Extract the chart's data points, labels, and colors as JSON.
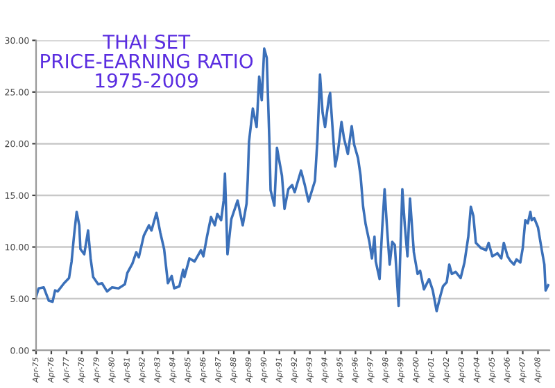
{
  "chart_data": {
    "type": "line",
    "title": "THAI SET\nPRICE-EARNING RATIO\n1975-2009",
    "x": [
      "1975-04",
      "1975-06",
      "1975-10",
      "1976-02",
      "1976-05",
      "1976-07",
      "1976-09",
      "1977-02",
      "1977-06",
      "1977-08",
      "1977-10",
      "1977-12",
      "1978-02",
      "1978-03",
      "1978-06",
      "1978-09",
      "1978-11",
      "1979-01",
      "1979-05",
      "1979-08",
      "1979-12",
      "1980-04",
      "1980-09",
      "1981-02",
      "1981-04",
      "1981-08",
      "1981-11",
      "1982-01",
      "1982-05",
      "1982-09",
      "1982-11",
      "1983-03",
      "1983-06",
      "1983-09",
      "1983-12",
      "1984-03",
      "1984-05",
      "1984-09",
      "1984-12",
      "1985-01",
      "1985-05",
      "1985-09",
      "1986-02",
      "1986-04",
      "1986-07",
      "1986-10",
      "1987-01",
      "1987-03",
      "1987-06",
      "1987-08",
      "1987-09",
      "1987-11",
      "1988-02",
      "1988-07",
      "1988-11",
      "1989-02",
      "1989-03",
      "1989-04",
      "1989-07",
      "1989-10",
      "1989-12",
      "1990-02",
      "1990-04",
      "1990-06",
      "1990-08",
      "1990-09",
      "1990-12",
      "1991-02",
      "1991-06",
      "1991-08",
      "1991-11",
      "1992-02",
      "1992-04",
      "1992-09",
      "1992-12",
      "1993-03",
      "1993-08",
      "1993-10",
      "1993-12",
      "1994-02",
      "1994-04",
      "1994-07",
      "1994-08",
      "1994-12",
      "1995-02",
      "1995-05",
      "1995-07",
      "1995-10",
      "1996-01",
      "1996-03",
      "1996-06",
      "1996-08",
      "1996-10",
      "1996-12",
      "1997-03",
      "1997-05",
      "1997-07",
      "1997-08",
      "1997-11",
      "1998-01",
      "1998-03",
      "1998-05",
      "1998-07",
      "1998-09",
      "1998-11",
      "1999-02",
      "1999-05",
      "1999-07",
      "1999-09",
      "1999-11",
      "2000-02",
      "2000-05",
      "2000-07",
      "2000-10",
      "2001-02",
      "2001-05",
      "2001-08",
      "2001-11",
      "2002-01",
      "2002-04",
      "2002-06",
      "2002-08",
      "2002-11",
      "2003-03",
      "2003-06",
      "2003-09",
      "2003-11",
      "2004-01",
      "2004-03",
      "2004-07",
      "2004-11",
      "2005-01",
      "2005-04",
      "2005-08",
      "2005-11",
      "2006-01",
      "2006-04",
      "2006-06",
      "2006-09",
      "2006-11",
      "2007-02",
      "2007-04",
      "2007-06",
      "2007-08",
      "2007-10",
      "2007-11",
      "2008-01",
      "2008-04",
      "2008-07",
      "2008-09",
      "2008-10",
      "2008-12"
    ],
    "series": [
      {
        "color": "#3b70b9",
        "values": [
          5.2,
          6.0,
          6.1,
          4.8,
          4.7,
          5.8,
          5.7,
          6.5,
          7.0,
          8.6,
          11.2,
          13.4,
          12.1,
          9.8,
          9.3,
          11.6,
          8.9,
          7.1,
          6.4,
          6.5,
          5.7,
          6.1,
          6.0,
          6.4,
          7.5,
          8.4,
          9.5,
          9.0,
          11.1,
          12.1,
          11.6,
          13.3,
          11.4,
          9.8,
          6.5,
          7.2,
          6.0,
          6.2,
          7.8,
          7.1,
          8.9,
          8.6,
          9.7,
          9.1,
          11.1,
          12.9,
          12.1,
          13.2,
          12.6,
          14.5,
          17.1,
          9.3,
          12.7,
          14.5,
          12.1,
          14.2,
          16.5,
          20.2,
          23.4,
          21.6,
          26.5,
          24.2,
          29.2,
          28.3,
          20.5,
          15.5,
          14.0,
          19.6,
          16.9,
          13.7,
          15.6,
          16.0,
          15.3,
          17.4,
          16.0,
          14.4,
          16.4,
          20.5,
          26.7,
          23.0,
          21.6,
          24.4,
          24.9,
          17.8,
          19.1,
          22.1,
          20.5,
          19.0,
          21.7,
          19.9,
          18.6,
          16.9,
          13.9,
          12.2,
          10.5,
          8.9,
          11.0,
          8.6,
          6.9,
          11.7,
          15.6,
          11.7,
          8.3,
          10.5,
          10.2,
          4.3,
          15.6,
          12.0,
          9.1,
          14.7,
          9.5,
          7.4,
          7.7,
          5.9,
          6.9,
          5.8,
          3.8,
          5.3,
          6.2,
          6.6,
          8.3,
          7.4,
          7.6,
          7.0,
          8.5,
          11.0,
          13.9,
          13.0,
          10.4,
          9.9,
          9.7,
          10.4,
          9.1,
          9.4,
          8.9,
          10.4,
          9.1,
          8.7,
          8.3,
          8.8,
          8.5,
          9.9,
          12.6,
          12.3,
          13.4,
          12.6,
          12.8,
          11.9,
          9.7,
          8.3,
          5.8,
          6.3
        ]
      }
    ],
    "xlim": [
      "1975-04",
      "2009-01"
    ],
    "xticks": [
      {
        "value": "1975-04",
        "label": "Apr-75"
      },
      {
        "value": "1976-04",
        "label": "Apr-76"
      },
      {
        "value": "1977-04",
        "label": "Apr-77"
      },
      {
        "value": "1978-04",
        "label": "Apr-78"
      },
      {
        "value": "1979-04",
        "label": "Apr-79"
      },
      {
        "value": "1980-04",
        "label": "Apr-80"
      },
      {
        "value": "1981-04",
        "label": "Apr-81"
      },
      {
        "value": "1982-04",
        "label": "Apr-82"
      },
      {
        "value": "1983-04",
        "label": "Apr-83"
      },
      {
        "value": "1984-04",
        "label": "Apr-84"
      },
      {
        "value": "1985-04",
        "label": "Apr-85"
      },
      {
        "value": "1986-04",
        "label": "Apr-86"
      },
      {
        "value": "1987-04",
        "label": "Apr-87"
      },
      {
        "value": "1988-04",
        "label": "Apr-88"
      },
      {
        "value": "1989-04",
        "label": "Apr-89"
      },
      {
        "value": "1990-04",
        "label": "Apr-90"
      },
      {
        "value": "1991-04",
        "label": "Apr-91"
      },
      {
        "value": "1992-04",
        "label": "Apr-92"
      },
      {
        "value": "1993-04",
        "label": "Apr-93"
      },
      {
        "value": "1994-04",
        "label": "Apr-94"
      },
      {
        "value": "1995-04",
        "label": "Apr-95"
      },
      {
        "value": "1996-04",
        "label": "Apr-96"
      },
      {
        "value": "1997-04",
        "label": "Apr-97"
      },
      {
        "value": "1998-04",
        "label": "Apr-98"
      },
      {
        "value": "1999-04",
        "label": "Apr-99"
      },
      {
        "value": "2000-04",
        "label": "Apr-00"
      },
      {
        "value": "2001-04",
        "label": "Apr-01"
      },
      {
        "value": "2002-04",
        "label": "Apr-02"
      },
      {
        "value": "2003-04",
        "label": "Apr-03"
      },
      {
        "value": "2004-04",
        "label": "Apr-04"
      },
      {
        "value": "2005-04",
        "label": "Apr-05"
      },
      {
        "value": "2006-04",
        "label": "Apr-06"
      },
      {
        "value": "2007-04",
        "label": "Apr-07"
      },
      {
        "value": "2008-04",
        "label": "Apr-08"
      }
    ],
    "ylim": [
      0,
      30
    ],
    "yticks": [
      {
        "value": 0,
        "label": "0.00"
      },
      {
        "value": 5,
        "label": "5.00"
      },
      {
        "value": 10,
        "label": "10.00"
      },
      {
        "value": 15,
        "label": "15.00"
      },
      {
        "value": 20,
        "label": "20.00"
      },
      {
        "value": 25,
        "label": "25.00"
      },
      {
        "value": 30,
        "label": "30.00"
      }
    ],
    "grid": "y",
    "marker": "none",
    "line_style": "solid"
  }
}
